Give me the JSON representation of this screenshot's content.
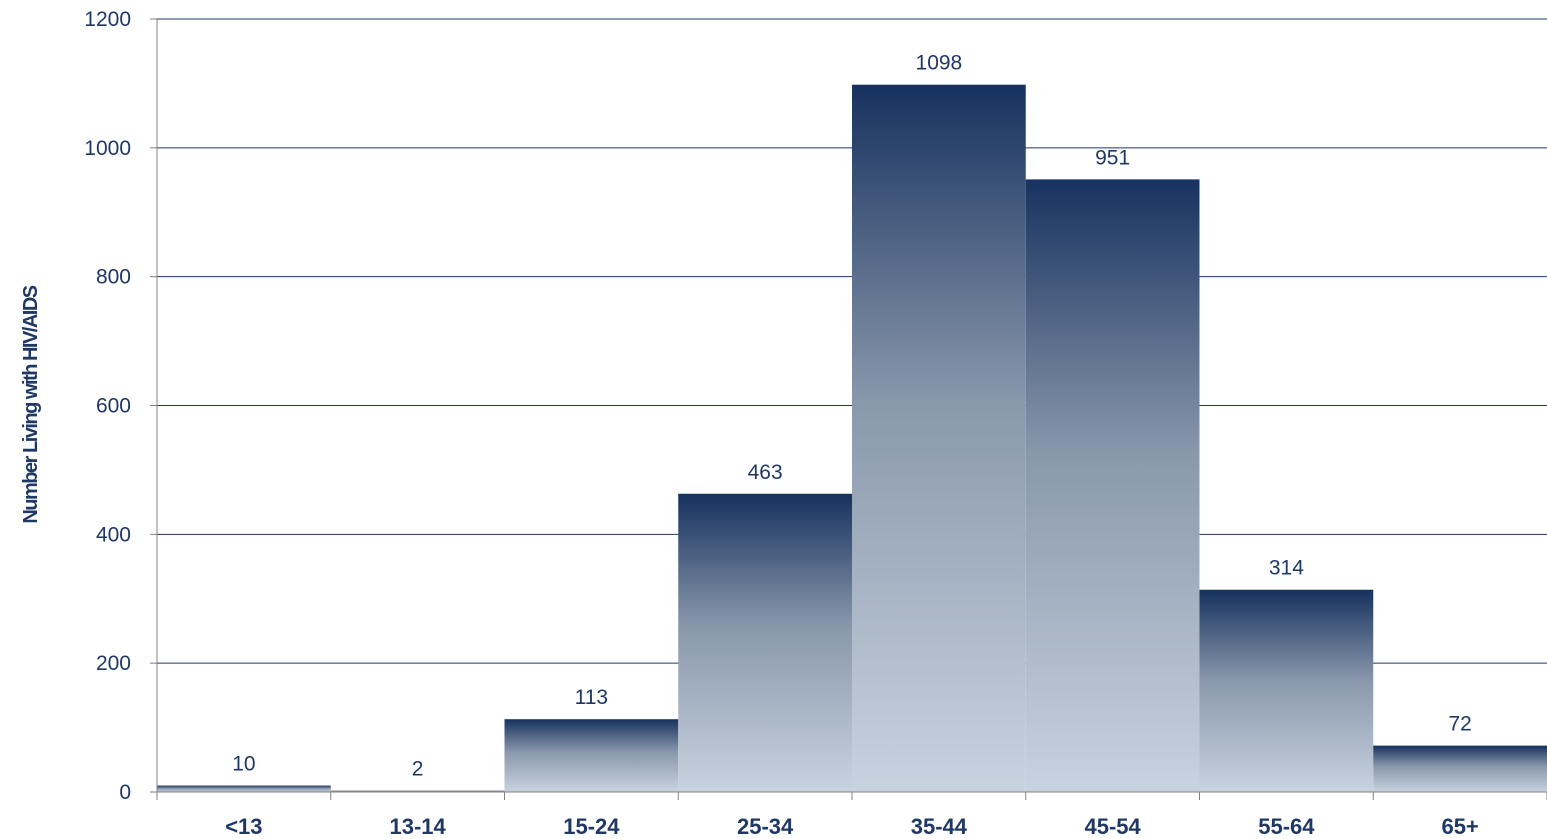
{
  "chart_data": {
    "type": "bar",
    "title": "",
    "xlabel": "",
    "ylabel": "Number Living with HIV/AIDS",
    "categories": [
      "<13",
      "13-14",
      "15-24",
      "25-34",
      "35-44",
      "45-54",
      "55-64",
      "65+"
    ],
    "values": [
      10,
      2,
      113,
      463,
      1098,
      951,
      314,
      72
    ],
    "data_labels": [
      "10",
      "2",
      "113",
      "463",
      "1098",
      "951",
      "314",
      "72"
    ],
    "ylim": [
      0,
      1200
    ],
    "yticks": [
      0,
      200,
      400,
      600,
      800,
      1000,
      1200
    ],
    "ytick_labels": [
      "0",
      "200",
      "400",
      "600",
      "800",
      "1000",
      "1200"
    ],
    "grid": true,
    "legend": "none",
    "colors": {
      "bar_top": "#17325f",
      "bar_bottom": "#c8d3e0",
      "text": "#1f3864",
      "gridline": "#1f3864"
    }
  }
}
